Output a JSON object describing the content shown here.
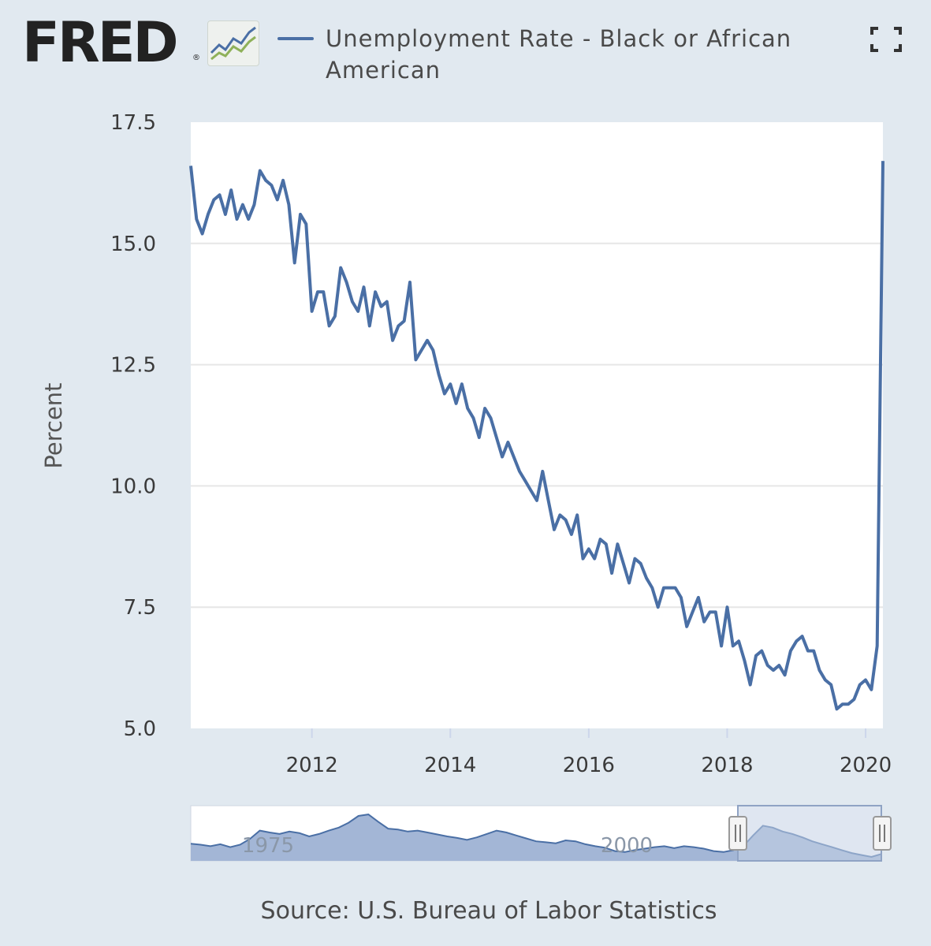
{
  "header": {
    "logo_text": "FRED",
    "logo_reg": "®",
    "legend_label": "Unemployment Rate - Black or African American",
    "fullscreen_icon": "fullscreen-icon"
  },
  "colors": {
    "background": "#e1e9f0",
    "series": "#4a6fa5",
    "grid": "#e6e6e6",
    "navigator_fill": "#a3b6d6",
    "navigator_selected": "#c4d1e6"
  },
  "chart_data": {
    "type": "line",
    "ylabel": "Percent",
    "ylim": [
      5.0,
      17.5
    ],
    "yticks": [
      "17.5",
      "15.0",
      "12.5",
      "10.0",
      "7.5",
      "5.0"
    ],
    "xticks": [
      "2012",
      "2014",
      "2016",
      "2018",
      "2020"
    ],
    "x_range": [
      "2010-04",
      "2020-04"
    ],
    "grid": true,
    "series": [
      {
        "start": "2010-04",
        "frequency": "monthly",
        "values": [
          16.6,
          15.5,
          15.2,
          15.6,
          15.9,
          16.0,
          15.6,
          16.1,
          15.5,
          15.8,
          15.5,
          15.8,
          16.5,
          16.3,
          16.2,
          15.9,
          16.3,
          15.8,
          14.6,
          15.6,
          15.4,
          13.6,
          14.0,
          14.0,
          13.3,
          13.5,
          14.5,
          14.2,
          13.8,
          13.6,
          14.1,
          13.3,
          14.0,
          13.7,
          13.8,
          13.0,
          13.3,
          13.4,
          14.2,
          12.6,
          12.8,
          13.0,
          12.8,
          12.3,
          11.9,
          12.1,
          11.7,
          12.1,
          11.6,
          11.4,
          11.0,
          11.6,
          11.4,
          11.0,
          10.6,
          10.9,
          10.6,
          10.3,
          10.1,
          9.9,
          9.7,
          10.3,
          9.7,
          9.1,
          9.4,
          9.3,
          9.0,
          9.4,
          8.5,
          8.7,
          8.5,
          8.9,
          8.8,
          8.2,
          8.8,
          8.4,
          8.0,
          8.5,
          8.4,
          8.1,
          7.9,
          7.5,
          7.9,
          7.9,
          7.9,
          7.7,
          7.1,
          7.4,
          7.7,
          7.2,
          7.4,
          7.4,
          6.7,
          7.5,
          6.7,
          6.8,
          6.4,
          5.9,
          6.5,
          6.6,
          6.3,
          6.2,
          6.3,
          6.1,
          6.6,
          6.8,
          6.9,
          6.6,
          6.6,
          6.2,
          6.0,
          5.9,
          5.4,
          5.5,
          5.5,
          5.6,
          5.9,
          6.0,
          5.8,
          6.7,
          16.7
        ]
      }
    ],
    "navigator": {
      "labels": [
        "1975",
        "2000"
      ]
    }
  },
  "footer": {
    "source": "Source: U.S. Bureau of Labor Statistics"
  }
}
